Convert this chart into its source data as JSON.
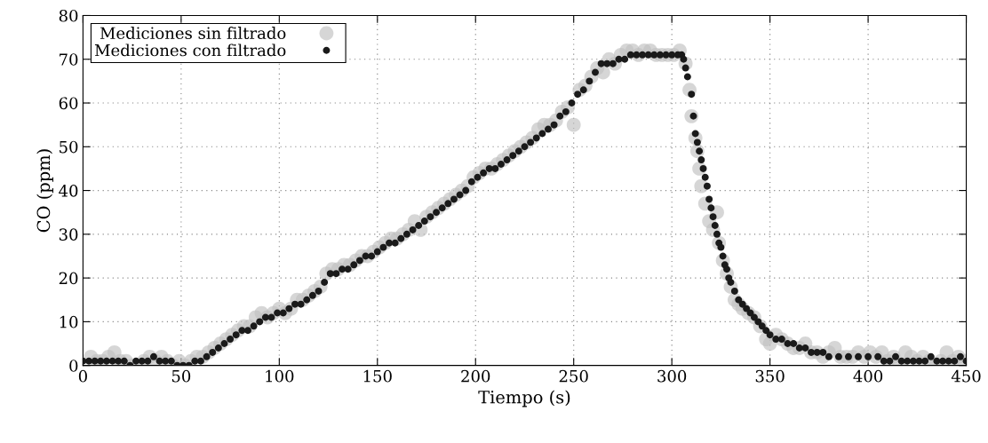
{
  "chart_data": {
    "type": "scatter",
    "xlabel": "Tiempo (s)",
    "ylabel": "CO (ppm)",
    "xlim": [
      0,
      450
    ],
    "ylim": [
      0,
      80
    ],
    "xticks": [
      0,
      50,
      100,
      150,
      200,
      250,
      300,
      350,
      400,
      450
    ],
    "yticks": [
      0,
      10,
      20,
      30,
      40,
      50,
      60,
      70,
      80
    ],
    "grid": true,
    "legend": "top left",
    "marker": "circle",
    "series": [
      {
        "name": "Mediciones sin filtrado",
        "color": "#c0c0c0",
        "x": [
          4,
          7,
          10,
          13,
          16,
          19,
          22,
          25,
          31,
          34,
          37,
          40,
          43,
          46,
          49,
          52,
          55,
          58,
          61,
          64,
          67,
          70,
          73,
          76,
          79,
          82,
          85,
          88,
          91,
          94,
          97,
          100,
          103,
          106,
          109,
          112,
          115,
          118,
          121,
          124,
          127,
          130,
          133,
          136,
          139,
          142,
          145,
          148,
          151,
          154,
          157,
          160,
          163,
          166,
          169,
          172,
          175,
          178,
          181,
          184,
          187,
          190,
          193,
          196,
          199,
          202,
          205,
          208,
          211,
          214,
          217,
          220,
          223,
          226,
          229,
          232,
          235,
          238,
          241,
          244,
          247,
          250,
          253,
          256,
          259,
          262,
          265,
          268,
          271,
          274,
          277,
          280,
          283,
          286,
          289,
          292,
          295,
          298,
          301,
          304,
          307,
          309,
          310,
          312,
          313,
          314,
          315,
          317,
          319,
          321,
          323,
          324,
          326,
          328,
          330,
          332,
          334,
          336,
          339,
          342,
          345,
          348,
          350,
          353,
          356,
          359,
          362,
          365,
          368,
          371,
          374,
          377,
          380,
          383,
          386,
          389,
          392,
          395,
          398,
          401,
          404,
          407,
          410,
          413,
          416,
          419,
          422,
          425,
          428,
          431,
          434,
          437,
          440,
          443,
          446,
          449
        ],
        "values": [
          2,
          1,
          1,
          2,
          3,
          1,
          1,
          0,
          1,
          2,
          1,
          2,
          1,
          0,
          1,
          0,
          1,
          2,
          2,
          3,
          4,
          5,
          6,
          7,
          8,
          9,
          9,
          11,
          12,
          11,
          12,
          13,
          12,
          13,
          15,
          15,
          16,
          17,
          18,
          21,
          22,
          22,
          23,
          23,
          24,
          25,
          25,
          26,
          27,
          28,
          29,
          29,
          30,
          31,
          33,
          31,
          34,
          35,
          36,
          37,
          38,
          39,
          40,
          41,
          43,
          44,
          45,
          45,
          46,
          47,
          48,
          49,
          50,
          51,
          52,
          54,
          55,
          55,
          56,
          58,
          59,
          55,
          63,
          64,
          66,
          68,
          67,
          70,
          69,
          71,
          72,
          72,
          71,
          72,
          72,
          71,
          71,
          71,
          71,
          72,
          69,
          63,
          57,
          52,
          49,
          45,
          41,
          37,
          33,
          31,
          35,
          28,
          24,
          21,
          18,
          15,
          14,
          13,
          12,
          11,
          9,
          6,
          5,
          7,
          6,
          5,
          4,
          4,
          5,
          3,
          3,
          2,
          3,
          4,
          2,
          2,
          2,
          3,
          2,
          3,
          2,
          3,
          1,
          2,
          0,
          3,
          2,
          1,
          2,
          1,
          0,
          1,
          3,
          1,
          2,
          1
        ]
      },
      {
        "name": "Mediciones con filtrado",
        "color": "#1a1a1a",
        "x": [
          0,
          3,
          6,
          9,
          12,
          15,
          18,
          21,
          24,
          27,
          30,
          33,
          36,
          39,
          42,
          45,
          48,
          51,
          54,
          57,
          60,
          63,
          66,
          69,
          72,
          75,
          78,
          81,
          84,
          87,
          90,
          93,
          96,
          99,
          102,
          105,
          108,
          111,
          114,
          117,
          120,
          123,
          126,
          129,
          132,
          135,
          138,
          141,
          144,
          147,
          150,
          153,
          156,
          159,
          162,
          165,
          168,
          171,
          174,
          177,
          180,
          183,
          186,
          189,
          192,
          195,
          198,
          201,
          204,
          207,
          210,
          213,
          216,
          219,
          222,
          225,
          228,
          231,
          234,
          237,
          240,
          243,
          246,
          249,
          252,
          255,
          258,
          261,
          264,
          267,
          270,
          273,
          276,
          279,
          282,
          285,
          288,
          291,
          294,
          297,
          300,
          303,
          305,
          306,
          307,
          308,
          310,
          311,
          312,
          313,
          314,
          315,
          316,
          317,
          318,
          319,
          320,
          321,
          322,
          323,
          324,
          325,
          326,
          327,
          328,
          329,
          330,
          332,
          334,
          336,
          338,
          340,
          342,
          344,
          346,
          348,
          350,
          353,
          356,
          359,
          362,
          365,
          368,
          371,
          374,
          377,
          380,
          385,
          390,
          395,
          400,
          405,
          408,
          411,
          414,
          417,
          420,
          423,
          426,
          429,
          432,
          435,
          438,
          441,
          444,
          447,
          450
        ],
        "values": [
          1,
          1,
          1,
          1,
          1,
          1,
          1,
          1,
          0,
          1,
          1,
          1,
          2,
          1,
          1,
          1,
          0,
          0,
          0,
          1,
          1,
          2,
          3,
          4,
          5,
          6,
          7,
          8,
          8,
          9,
          10,
          11,
          11,
          12,
          12,
          13,
          14,
          14,
          15,
          16,
          17,
          19,
          21,
          21,
          22,
          22,
          23,
          24,
          25,
          25,
          26,
          27,
          28,
          28,
          29,
          30,
          31,
          32,
          33,
          34,
          35,
          36,
          37,
          38,
          39,
          40,
          42,
          43,
          44,
          45,
          45,
          46,
          47,
          48,
          49,
          50,
          51,
          52,
          53,
          54,
          55,
          57,
          58,
          60,
          62,
          63,
          65,
          67,
          69,
          69,
          69,
          70,
          70,
          71,
          71,
          71,
          71,
          71,
          71,
          71,
          71,
          71,
          71,
          70,
          68,
          66,
          62,
          57,
          53,
          51,
          49,
          47,
          45,
          43,
          41,
          38,
          36,
          34,
          32,
          30,
          28,
          27,
          25,
          23,
          22,
          20,
          19,
          17,
          15,
          14,
          13,
          12,
          11,
          10,
          9,
          8,
          7,
          6,
          6,
          5,
          5,
          4,
          4,
          3,
          3,
          3,
          2,
          2,
          2,
          2,
          2,
          2,
          1,
          1,
          2,
          1,
          1,
          1,
          1,
          1,
          2,
          1,
          1,
          1,
          1,
          2,
          1
        ]
      }
    ]
  }
}
